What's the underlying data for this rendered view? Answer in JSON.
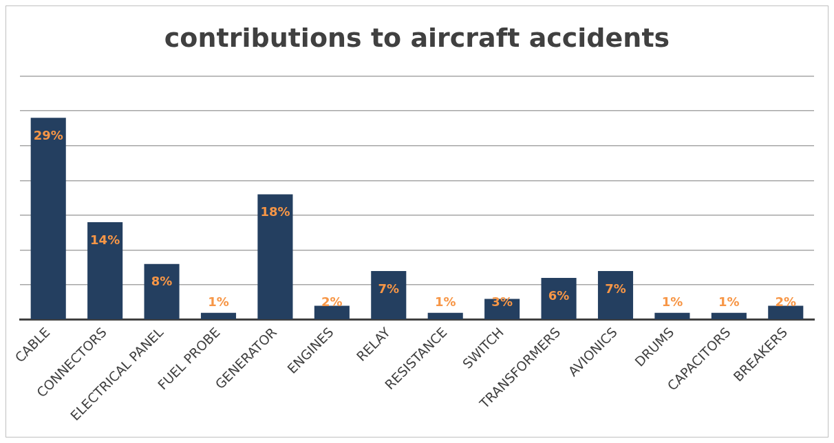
{
  "chart_data": {
    "type": "bar",
    "title": "contributions to aircraft accidents",
    "categories": [
      "CABLE",
      "CONNECTORS",
      "ELECTRICAL PANEL",
      "FUEL PROBE",
      "GENERATOR",
      "ENGINES",
      "RELAY",
      "RESISTANCE",
      "SWITCH",
      "TRANSFORMERS",
      "AVIONICS",
      "DRUMS",
      "CAPACITORS",
      "BREAKERS"
    ],
    "values": [
      29,
      14,
      8,
      1,
      18,
      2,
      7,
      1,
      3,
      6,
      7,
      1,
      1,
      2
    ],
    "value_labels": [
      "29%",
      "14%",
      "8%",
      "1%",
      "18%",
      "2%",
      "7%",
      "1%",
      "3%",
      "6%",
      "7%",
      "1%",
      "1%",
      "2%"
    ],
    "color": "#243f60",
    "ylim": [
      0,
      35
    ],
    "yticks": [
      {
        "value": 0,
        "label": null
      },
      {
        "value": 5,
        "label": null
      },
      {
        "value": 10,
        "label": null
      },
      {
        "value": 15,
        "label": null
      },
      {
        "value": 20,
        "label": null
      },
      {
        "value": 25,
        "label": null
      },
      {
        "value": 30,
        "label": null
      },
      {
        "value": 35,
        "label": null
      }
    ],
    "tick_labels": "x",
    "grid": "y",
    "legend": false
  }
}
